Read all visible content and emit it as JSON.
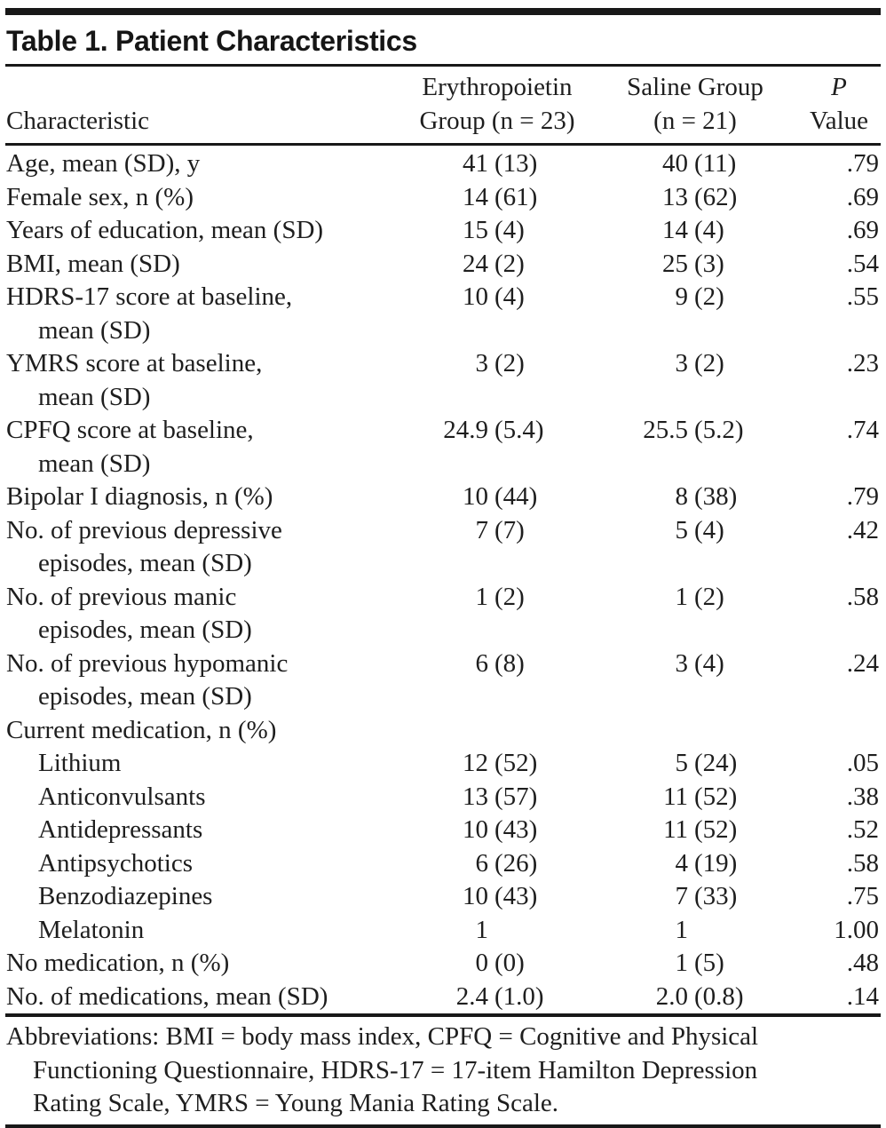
{
  "table": {
    "title": "Table 1. Patient Characteristics",
    "columns": {
      "characteristic": "Characteristic",
      "group1_line1": "Erythropoietin",
      "group1_line2": "Group (n = 23)",
      "group2_line1": "Saline Group",
      "group2_line2": "(n = 21)",
      "p_line1": "P",
      "p_line2": "Value"
    },
    "rows": [
      {
        "label": "Age, mean (SD), y",
        "epo": {
          "v": "41",
          "d": "(13)"
        },
        "saline": {
          "v": "40",
          "d": "(11)"
        },
        "p": ".79"
      },
      {
        "label": "Female sex, n (%)",
        "epo": {
          "v": "14",
          "d": "(61)"
        },
        "saline": {
          "v": "13",
          "d": "(62)"
        },
        "p": ".69"
      },
      {
        "label": "Years of education, mean (SD)",
        "epo": {
          "v": "15",
          "d": "(4)"
        },
        "saline": {
          "v": "14",
          "d": "(4)"
        },
        "p": ".69"
      },
      {
        "label": "BMI, mean (SD)",
        "epo": {
          "v": "24",
          "d": "(2)"
        },
        "saline": {
          "v": "25",
          "d": "(3)"
        },
        "p": ".54"
      },
      {
        "label": "HDRS-17 score at baseline,",
        "label2": "mean (SD)",
        "epo": {
          "v": "10",
          "d": "(4)"
        },
        "saline": {
          "v": "9",
          "d": "(2)"
        },
        "p": ".55"
      },
      {
        "label": "YMRS score at baseline,",
        "label2": "mean (SD)",
        "epo": {
          "v": "3",
          "d": "(2)"
        },
        "saline": {
          "v": "3",
          "d": "(2)"
        },
        "p": ".23"
      },
      {
        "label": "CPFQ score at baseline,",
        "label2": "mean (SD)",
        "epo": {
          "v": "24.9",
          "d": "(5.4)"
        },
        "saline": {
          "v": "25.5",
          "d": "(5.2)"
        },
        "p": ".74"
      },
      {
        "label": "Bipolar I diagnosis, n (%)",
        "epo": {
          "v": "10",
          "d": "(44)"
        },
        "saline": {
          "v": "8",
          "d": "(38)"
        },
        "p": ".79"
      },
      {
        "label": "No. of previous depressive",
        "label2": "episodes, mean (SD)",
        "epo": {
          "v": "7",
          "d": "(7)"
        },
        "saline": {
          "v": "5",
          "d": "(4)"
        },
        "p": ".42"
      },
      {
        "label": "No. of previous manic",
        "label2": "episodes, mean (SD)",
        "epo": {
          "v": "1",
          "d": "(2)"
        },
        "saline": {
          "v": "1",
          "d": "(2)"
        },
        "p": ".58"
      },
      {
        "label": "No. of previous hypomanic",
        "label2": "episodes, mean (SD)",
        "epo": {
          "v": "6",
          "d": "(8)"
        },
        "saline": {
          "v": "3",
          "d": "(4)"
        },
        "p": ".24"
      },
      {
        "label": "Current medication, n (%)",
        "epo": {
          "v": "",
          "d": ""
        },
        "saline": {
          "v": "",
          "d": ""
        },
        "p": ""
      },
      {
        "label": "Lithium",
        "indent": true,
        "epo": {
          "v": "12",
          "d": "(52)"
        },
        "saline": {
          "v": "5",
          "d": "(24)"
        },
        "p": ".05"
      },
      {
        "label": "Anticonvulsants",
        "indent": true,
        "epo": {
          "v": "13",
          "d": "(57)"
        },
        "saline": {
          "v": "11",
          "d": "(52)"
        },
        "p": ".38"
      },
      {
        "label": "Antidepressants",
        "indent": true,
        "epo": {
          "v": "10",
          "d": "(43)"
        },
        "saline": {
          "v": "11",
          "d": "(52)"
        },
        "p": ".52"
      },
      {
        "label": "Antipsychotics",
        "indent": true,
        "epo": {
          "v": "6",
          "d": "(26)"
        },
        "saline": {
          "v": "4",
          "d": "(19)"
        },
        "p": ".58"
      },
      {
        "label": "Benzodiazepines",
        "indent": true,
        "epo": {
          "v": "10",
          "d": "(43)"
        },
        "saline": {
          "v": "7",
          "d": "(33)"
        },
        "p": ".75"
      },
      {
        "label": "Melatonin",
        "indent": true,
        "epo": {
          "v": "1",
          "d": ""
        },
        "saline": {
          "v": "1",
          "d": ""
        },
        "p": "1.00"
      },
      {
        "label": "No medication, n (%)",
        "epo": {
          "v": "0",
          "d": "(0)"
        },
        "saline": {
          "v": "1",
          "d": "(5)"
        },
        "p": ".48"
      },
      {
        "label": "No. of medications, mean (SD)",
        "epo": {
          "v": "2.4",
          "d": "(1.0)"
        },
        "saline": {
          "v": "2.0",
          "d": "(0.8)"
        },
        "p": ".14"
      }
    ],
    "footnote_lines": [
      "Abbreviations: BMI = body mass index, CPFQ = Cognitive and Physical",
      "Functioning Questionnaire, HDRS-17 = 17-item Hamilton Depression",
      "Rating Scale, YMRS = Young Mania Rating Scale."
    ]
  }
}
